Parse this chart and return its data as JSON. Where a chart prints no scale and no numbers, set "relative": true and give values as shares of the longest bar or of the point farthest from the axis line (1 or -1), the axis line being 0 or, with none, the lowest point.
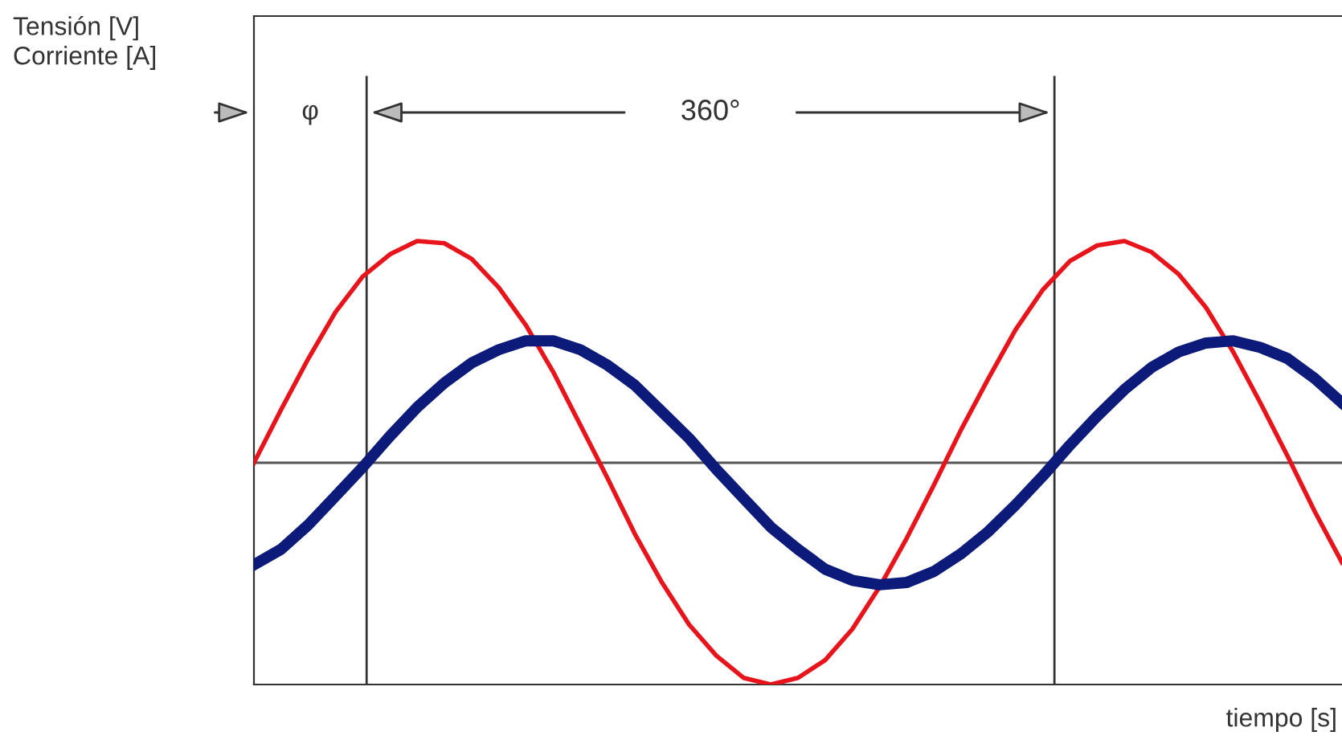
{
  "chart_data": {
    "type": "line",
    "relative": true,
    "xlabel": "tiempo [s]",
    "categories": [
      null,
      null,
      null,
      null,
      null,
      null,
      null,
      null,
      null,
      null,
      null,
      null,
      null,
      null,
      null,
      null,
      null,
      null,
      null,
      null,
      null,
      null,
      null,
      null,
      null,
      null,
      null,
      null,
      null,
      null,
      null,
      null,
      null,
      null,
      null,
      null,
      null,
      null,
      null,
      null,
      null
    ],
    "series": [
      {
        "color": "#e8141b",
        "values": [
          0,
          0.24,
          0.47,
          0.68,
          0.84,
          0.94,
          1.0,
          0.99,
          0.92,
          0.79,
          0.62,
          0.41,
          0.17,
          -0.07,
          -0.32,
          -0.54,
          -0.73,
          -0.87,
          -0.97,
          -1.0,
          -0.97,
          -0.89,
          -0.75,
          -0.56,
          -0.34,
          -0.1,
          0.15,
          0.38,
          0.6,
          0.78,
          0.91,
          0.98,
          1.0,
          0.95,
          0.85,
          0.7,
          0.5,
          0.27,
          0.03,
          -0.22,
          -0.45
        ]
      },
      {
        "color": "#0c1a7a",
        "values": [
          -0.46,
          -0.39,
          -0.28,
          -0.15,
          -0.02,
          0.12,
          0.25,
          0.36,
          0.45,
          0.51,
          0.55,
          0.55,
          0.51,
          0.44,
          0.35,
          0.23,
          0.11,
          -0.03,
          -0.16,
          -0.29,
          -0.39,
          -0.48,
          -0.53,
          -0.55,
          -0.54,
          -0.49,
          -0.41,
          -0.31,
          -0.19,
          -0.06,
          0.08,
          0.21,
          0.33,
          0.43,
          0.5,
          0.54,
          0.55,
          0.52,
          0.47,
          0.38,
          0.27
        ]
      }
    ],
    "annotations": [
      "Tensión [V]\nCorriente [A]",
      "φ",
      "360°"
    ],
    "grid": false,
    "legend": false,
    "marker": "none",
    "line_style": "solid"
  }
}
